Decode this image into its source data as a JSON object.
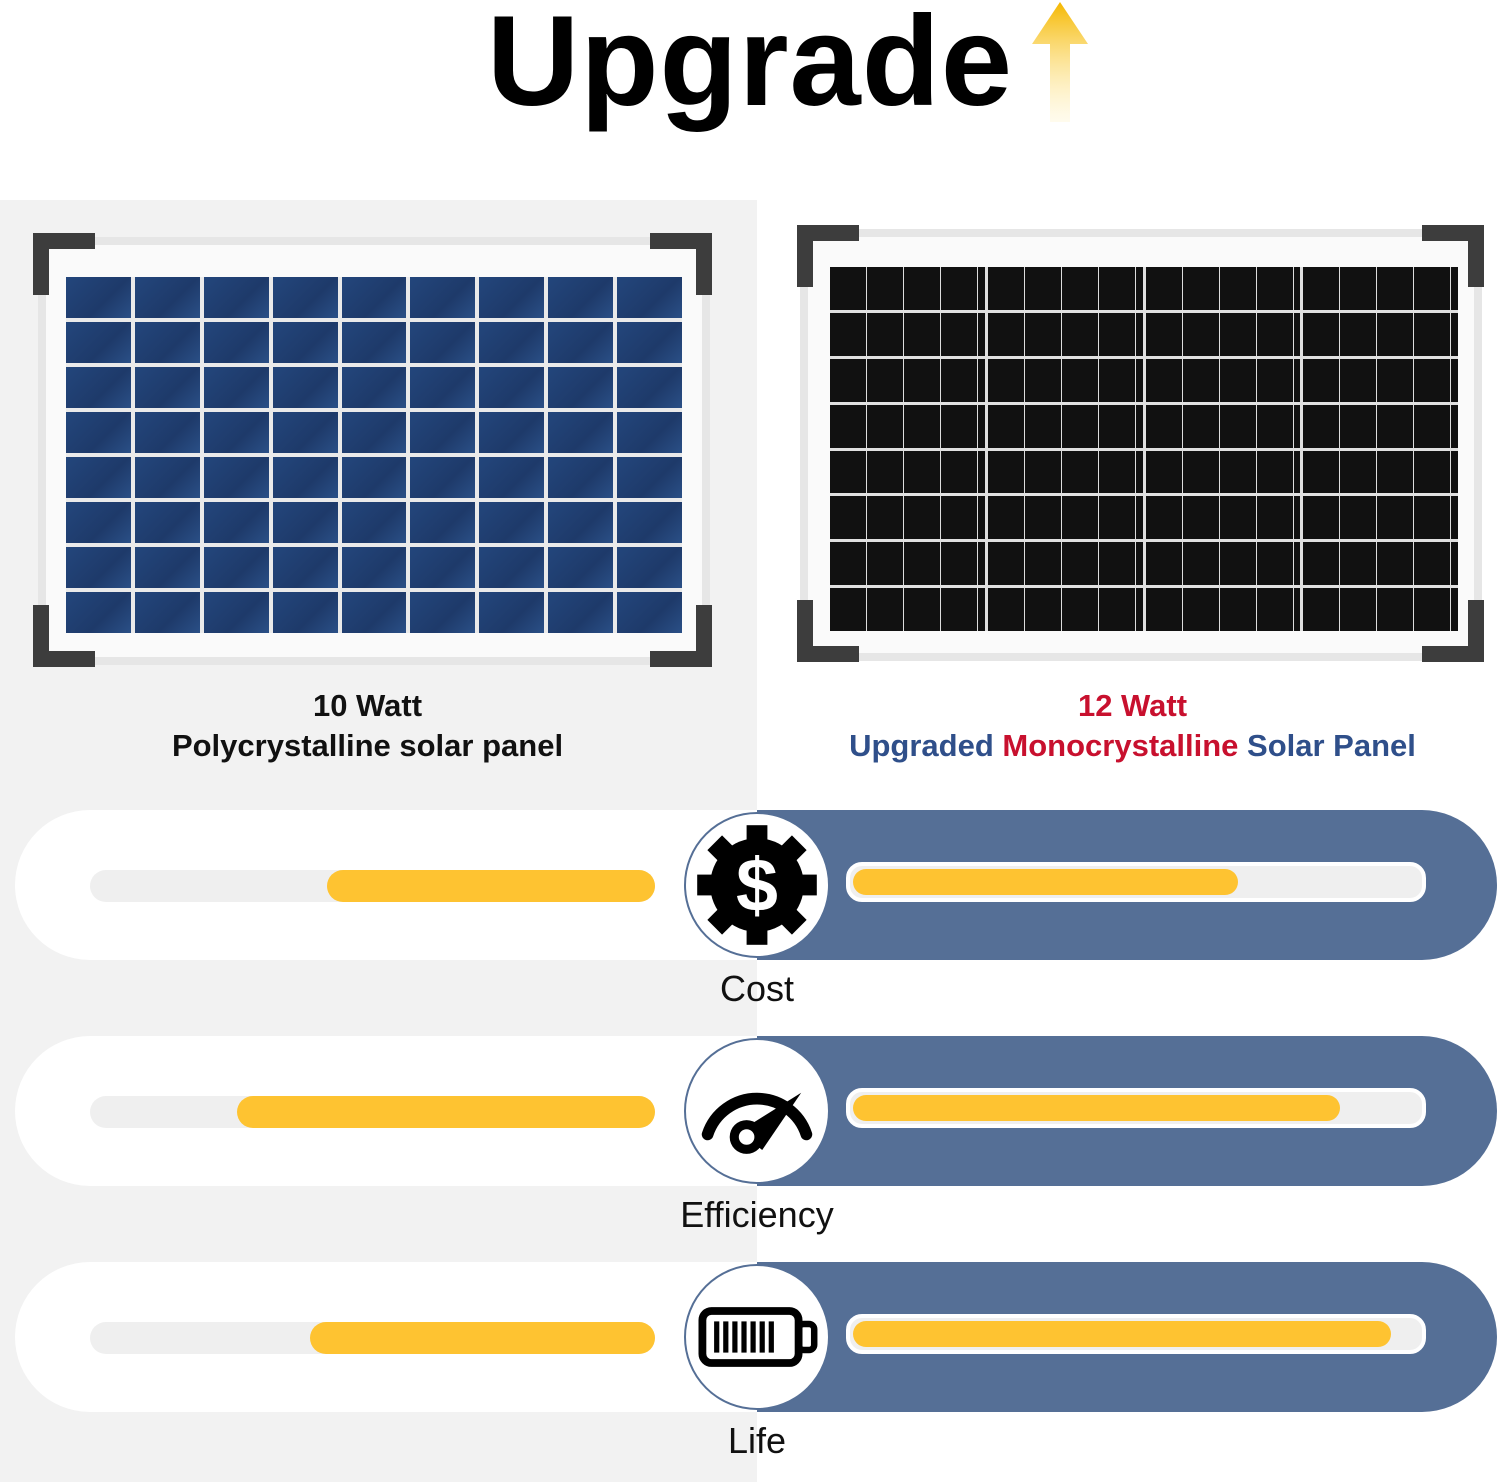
{
  "title": "Upgrade",
  "title_icon": "up-arrow-icon",
  "left_product": {
    "watt": "10 Watt",
    "name": "Polycrystalline solar panel"
  },
  "right_product": {
    "watt": "12 Watt",
    "prefix": "Upgraded",
    "name": "Monocrystalline",
    "suffix": "Solar Panel"
  },
  "colors": {
    "accent_red": "#c8102e",
    "accent_blue": "#2f4f8a",
    "band_blue": "#556f96",
    "bar_yellow": "#fec331",
    "arrow": "#f5b800"
  },
  "metrics": [
    {
      "label": "Cost",
      "icon": "dollar-gear-icon",
      "left_level": 0.58,
      "right_level": 0.68
    },
    {
      "label": "Efficiency",
      "icon": "speedometer-icon",
      "left_level": 0.74,
      "right_level": 0.86
    },
    {
      "label": "Life",
      "icon": "battery-icon",
      "left_level": 0.61,
      "right_level": 0.95
    }
  ]
}
